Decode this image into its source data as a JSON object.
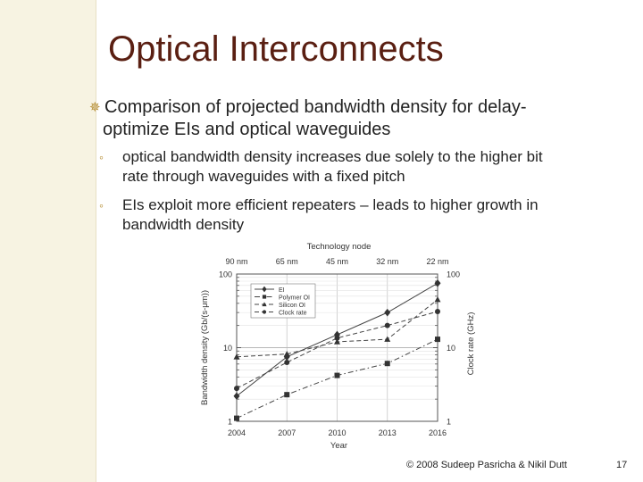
{
  "slide": {
    "title": "Optical Interconnects",
    "bullet": {
      "line1": "Comparison of projected bandwidth density for delay-",
      "line2": "optimize EIs and optical waveguides"
    },
    "subbullets": [
      {
        "line1": "optical bandwidth density increases due solely to the higher bit",
        "line2": "rate through waveguides with a fixed pitch"
      },
      {
        "line1": "EIs exploit more efficient repeaters – leads to higher growth in",
        "line2": "bandwidth density"
      }
    ],
    "footer": "© 2008 Sudeep Pasricha & Nikil Dutt",
    "page_number": "17"
  },
  "chart_data": {
    "type": "line",
    "top_axis_label": "Technology node",
    "top_ticks": [
      "90 nm",
      "65 nm",
      "45 nm",
      "32 nm",
      "22 nm"
    ],
    "x": [
      2004,
      2007,
      2010,
      2013,
      2016
    ],
    "xlabel": "Year",
    "ylabel": "Bandwidth density (Gb/(s-μm))",
    "y2label": "Clock rate (GHz)",
    "y_scale": "log",
    "ylim": [
      1,
      100
    ],
    "y_ticks": [
      "1",
      "10",
      "100"
    ],
    "y2_ticks": [
      "1",
      "10",
      "100"
    ],
    "grid": true,
    "legend_position": "top-left",
    "series": [
      {
        "name": "EI",
        "marker": "diamond",
        "dash": "solid",
        "values": [
          2.2,
          7.5,
          15,
          30,
          75
        ]
      },
      {
        "name": "Polymer OI",
        "marker": "square",
        "dash": "dashdot",
        "values": [
          1.1,
          2.3,
          4.2,
          6.1,
          13
        ]
      },
      {
        "name": "Silicon OI",
        "marker": "triangle",
        "dash": "dashed",
        "values": [
          7.5,
          8.2,
          12,
          13,
          45
        ]
      },
      {
        "name": "Clock rate",
        "marker": "circle",
        "dash": "dashed",
        "values": [
          2.8,
          6.3,
          13.5,
          20,
          31
        ]
      }
    ]
  }
}
